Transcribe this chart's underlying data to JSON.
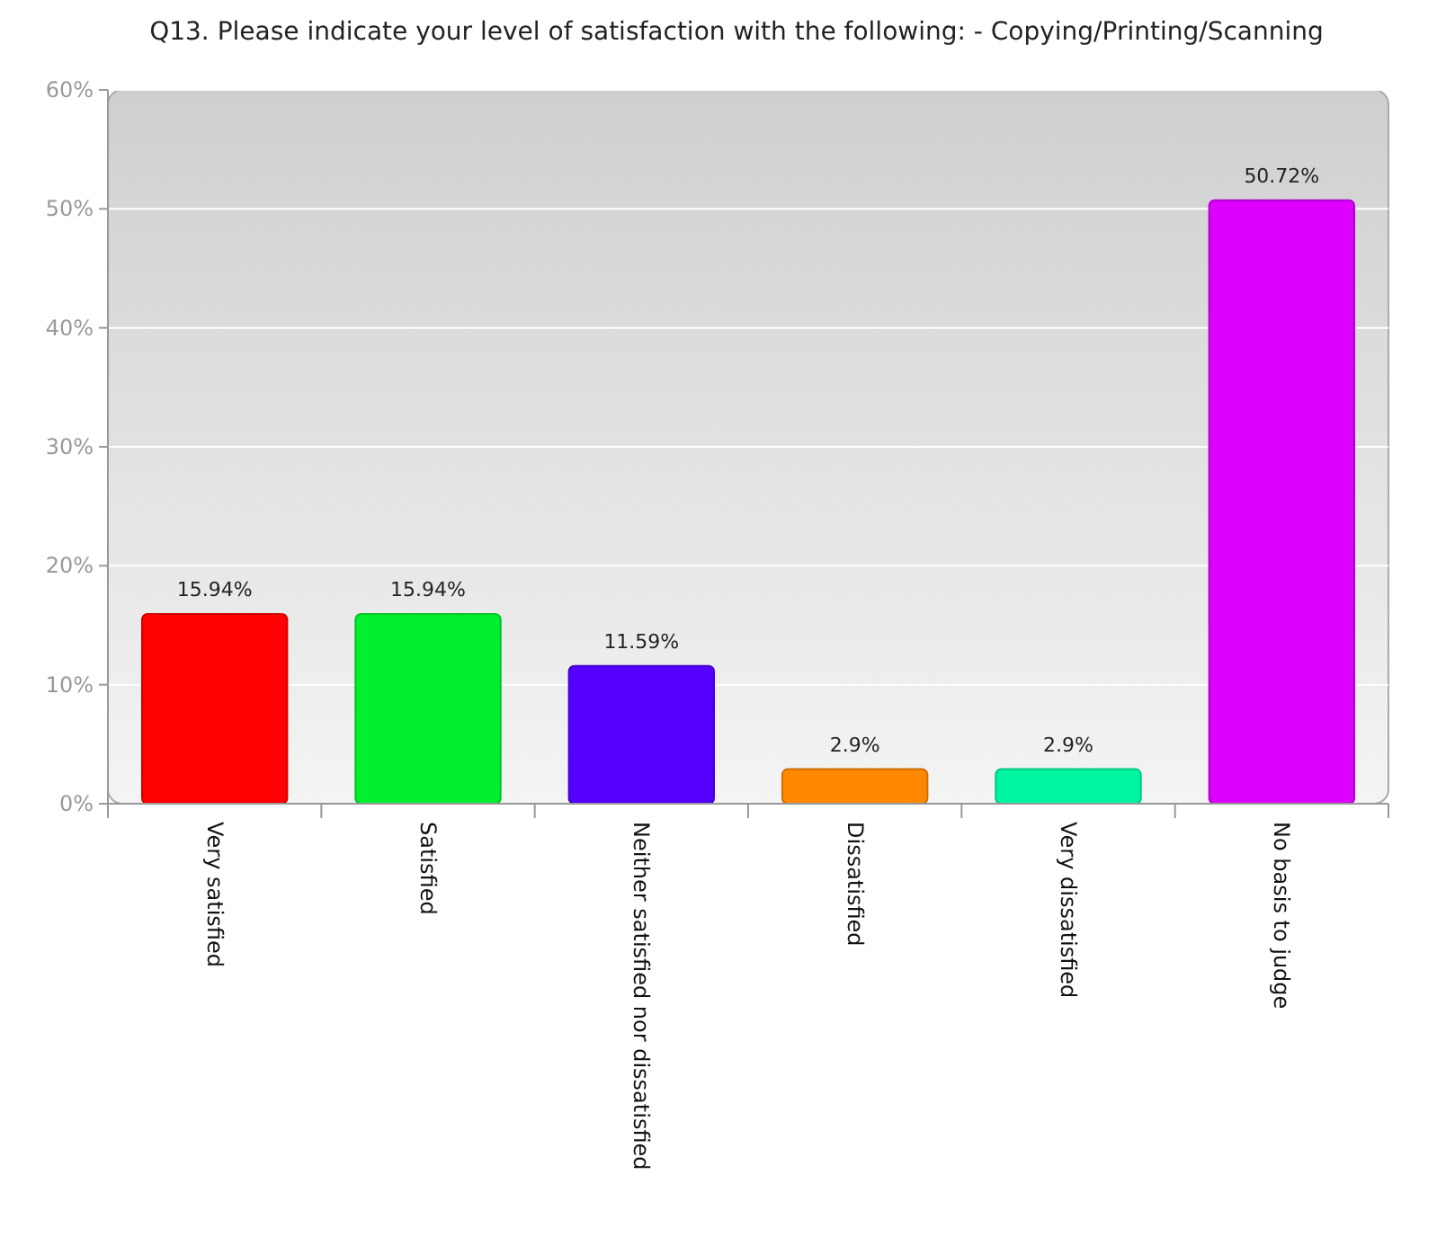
{
  "chart_data": {
    "type": "bar",
    "title": "Q13. Please indicate your level of satisfaction with the following:  - Copying/Printing/Scanning",
    "categories": [
      "Very satisfied",
      "Satisfied",
      "Neither satisfied nor dissatisfied",
      "Dissatisfied",
      "Very dissatisfied",
      "No basis to judge"
    ],
    "values": [
      15.94,
      15.94,
      11.59,
      2.9,
      2.9,
      50.72
    ],
    "colors": [
      "#ff0000",
      "#00f030",
      "#5500ff",
      "#ff8800",
      "#00f5a0",
      "#dd00ff"
    ],
    "value_labels": [
      "15.94%",
      "15.94%",
      "11.59%",
      "2.9%",
      "2.9%",
      "50.72%"
    ],
    "ylim": [
      0,
      60
    ],
    "yticks": [
      {
        "value": 0,
        "label": "0%"
      },
      {
        "value": 10,
        "label": "10%"
      },
      {
        "value": 20,
        "label": "20%"
      },
      {
        "value": 30,
        "label": "30%"
      },
      {
        "value": 40,
        "label": "40%"
      },
      {
        "value": 50,
        "label": "50%"
      },
      {
        "value": 60,
        "label": "60%"
      }
    ],
    "grid": "y"
  }
}
